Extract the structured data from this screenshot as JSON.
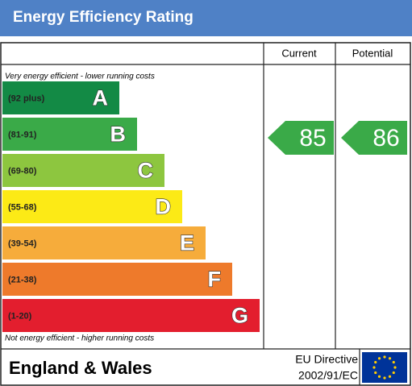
{
  "header": {
    "title": "Energy Efficiency Rating"
  },
  "columns": [
    "Current",
    "Potential"
  ],
  "top_note": "Very energy efficient - lower running costs",
  "bottom_note": "Not energy efficient - higher running costs",
  "bands": [
    {
      "range": "(92 plus)",
      "letter": "A",
      "color": "#138a45"
    },
    {
      "range": "(81-91)",
      "letter": "B",
      "color": "#3aaa48"
    },
    {
      "range": "(69-80)",
      "letter": "C",
      "color": "#8dc63f"
    },
    {
      "range": "(55-68)",
      "letter": "D",
      "color": "#fcea16"
    },
    {
      "range": "(39-54)",
      "letter": "E",
      "color": "#f6ac3b"
    },
    {
      "range": "(21-38)",
      "letter": "F",
      "color": "#ee7a2b"
    },
    {
      "range": "(1-20)",
      "letter": "G",
      "color": "#e31e2e"
    }
  ],
  "current": {
    "value": 85,
    "color": "#3aaa48"
  },
  "potential": {
    "value": 86,
    "color": "#3aaa48"
  },
  "footer": {
    "region": "England & Wales",
    "directive": [
      "EU Directive",
      "2002/91/EC"
    ]
  }
}
